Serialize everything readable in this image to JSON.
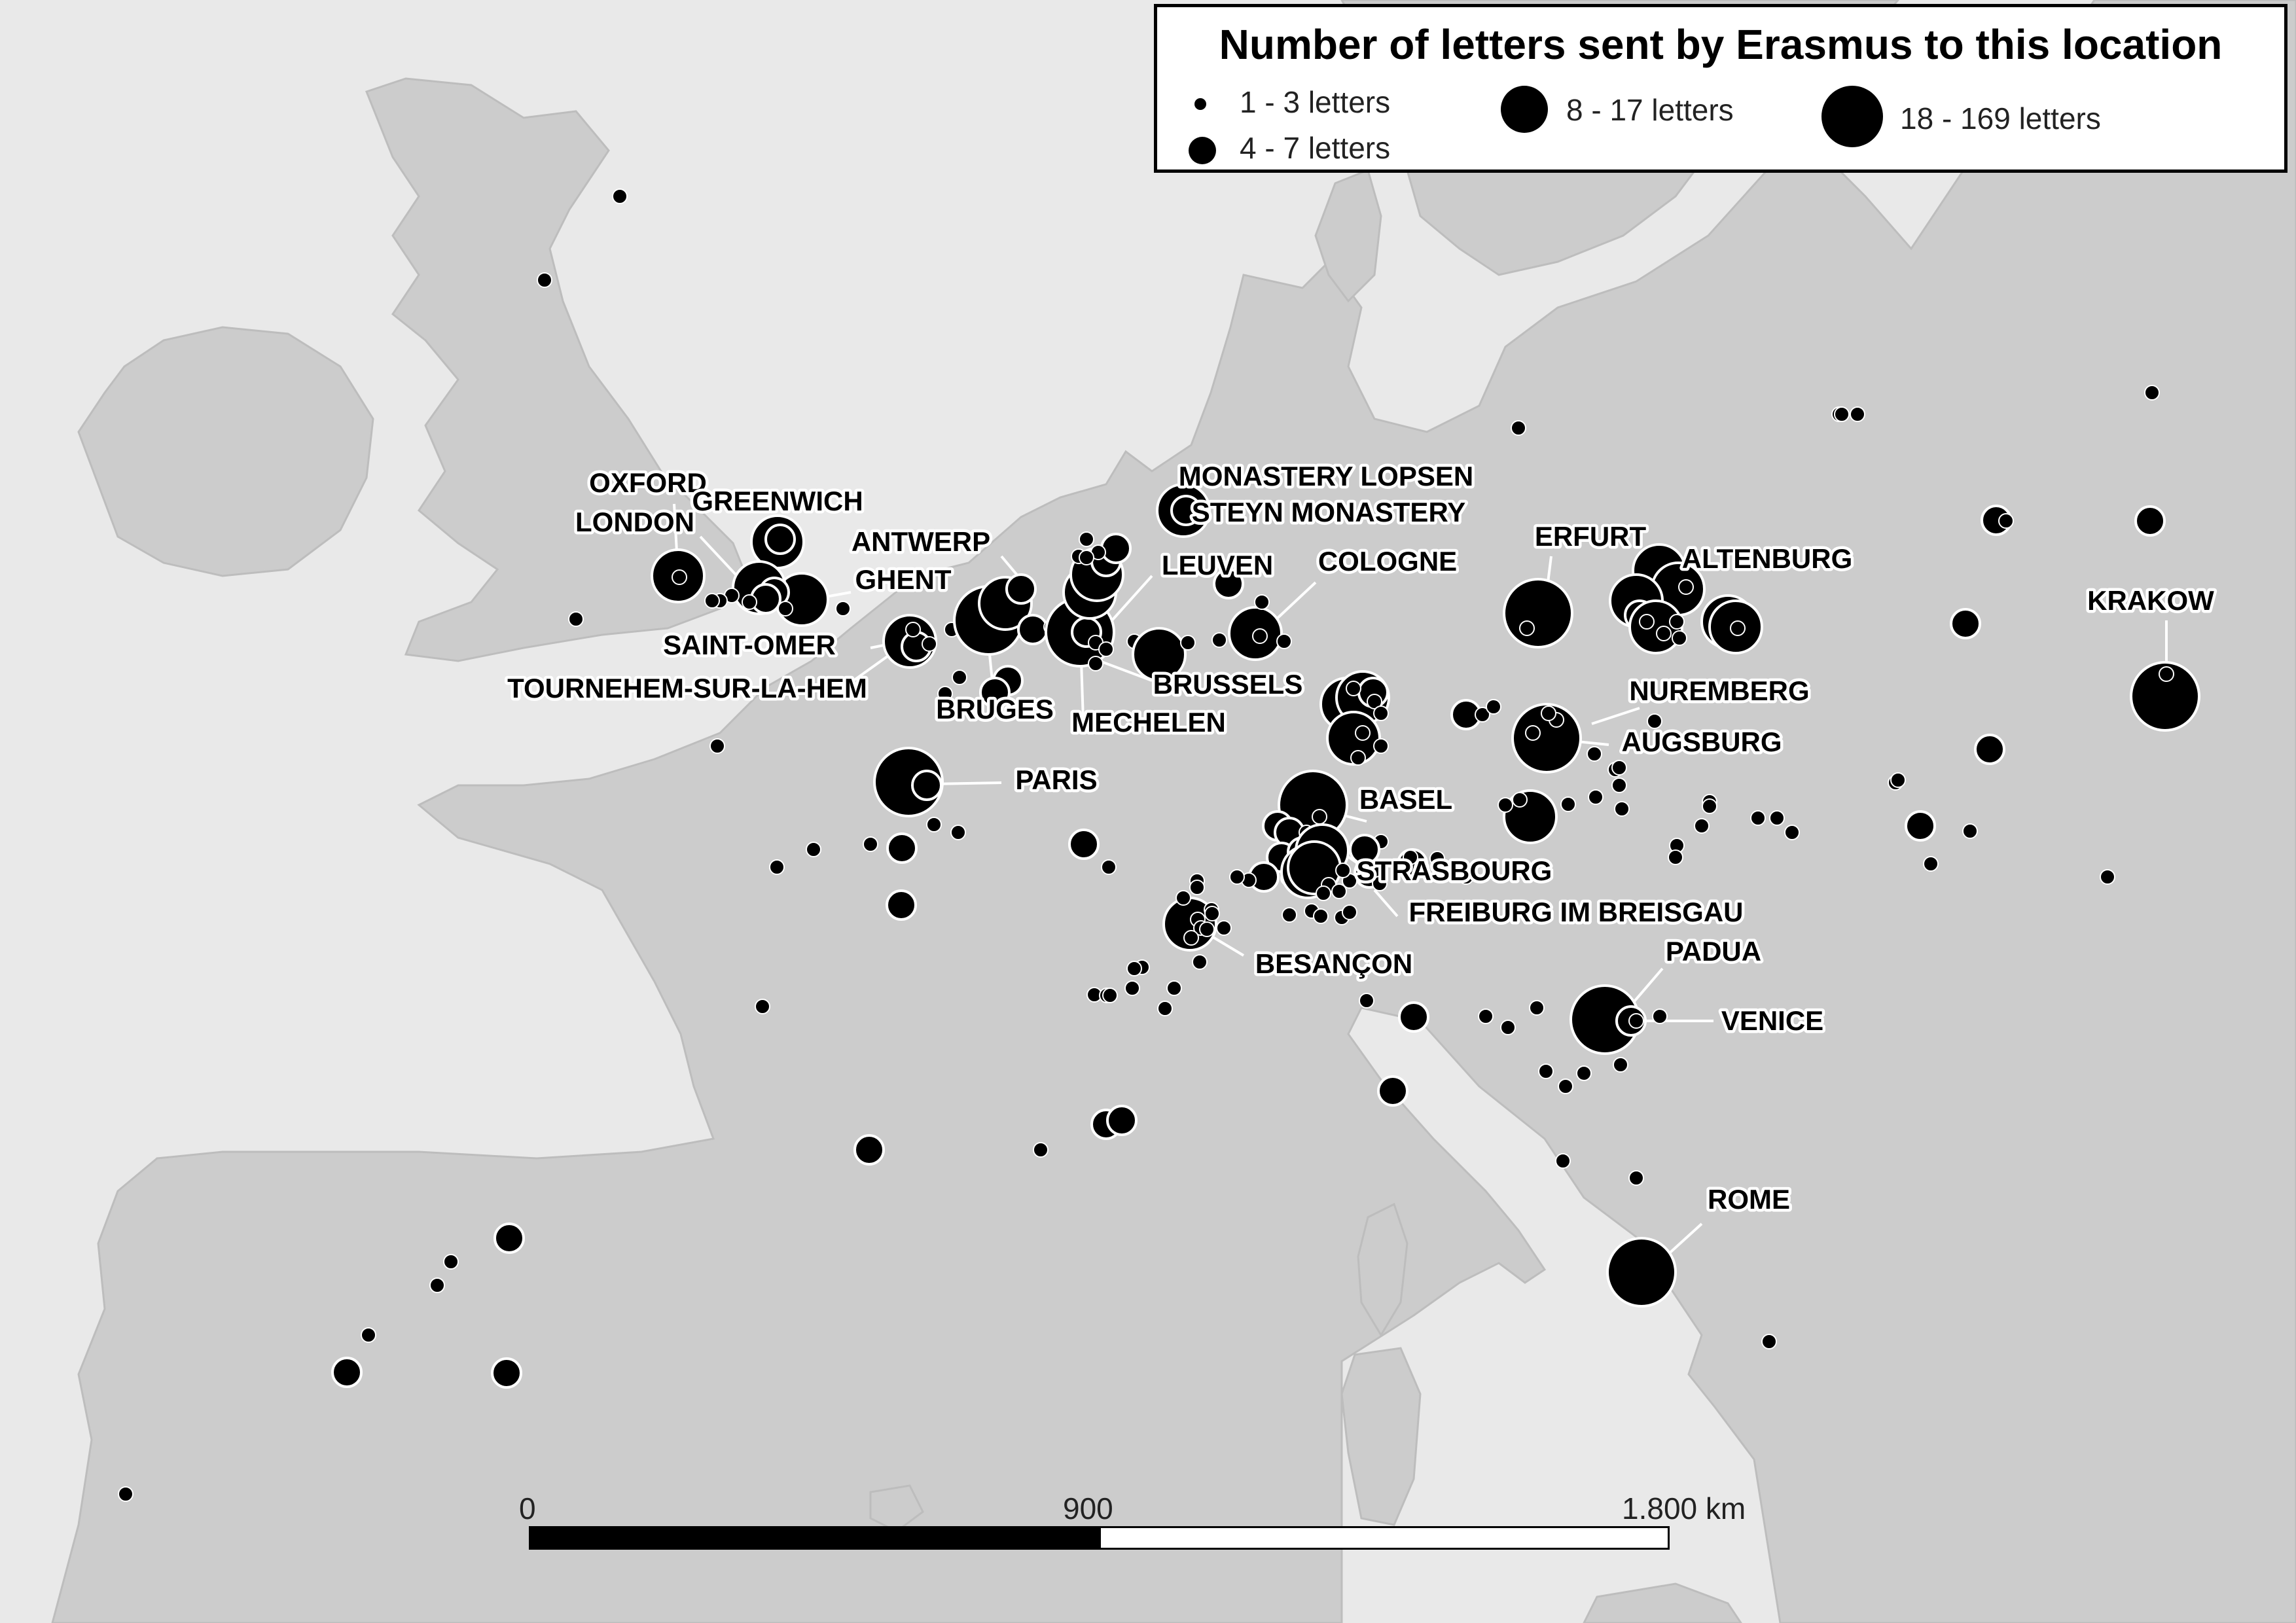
{
  "legend": {
    "title": "Number of letters sent by Erasmus to this location",
    "classes": [
      {
        "label": "1 - 3 letters"
      },
      {
        "label": "4 - 7 letters"
      },
      {
        "label": "8 - 17 letters"
      },
      {
        "label": "18 - 169 letters"
      }
    ]
  },
  "scale_bar": {
    "ticks": [
      "0",
      "900",
      "1.800 km"
    ]
  },
  "labels": [
    "OXFORD",
    "LONDON",
    "GREENWICH",
    "ANTWERP",
    "GHENT",
    "SAINT-OMER",
    "TOURNEHEM-SUR-LA-HEM",
    "BRUGES",
    "MECHELEN",
    "BRUSSELS",
    "LEUVEN",
    "MONASTERY LOPSEN",
    "STEYN MONASTERY",
    "COLOGNE",
    "ERFURT",
    "ALTENBURG",
    "KRAKOW",
    "NUREMBERG",
    "AUGSBURG",
    "BASEL",
    "STRASBOURG",
    "FREIBURG IM BREISGAU",
    "PARIS",
    "BESANÇON",
    "PADUA",
    "VENICE",
    "ROME"
  ],
  "colors": {
    "background": "#e9e9e9",
    "land": "#cccccc",
    "marker": "#000000",
    "marker_outline": "#ffffff"
  }
}
